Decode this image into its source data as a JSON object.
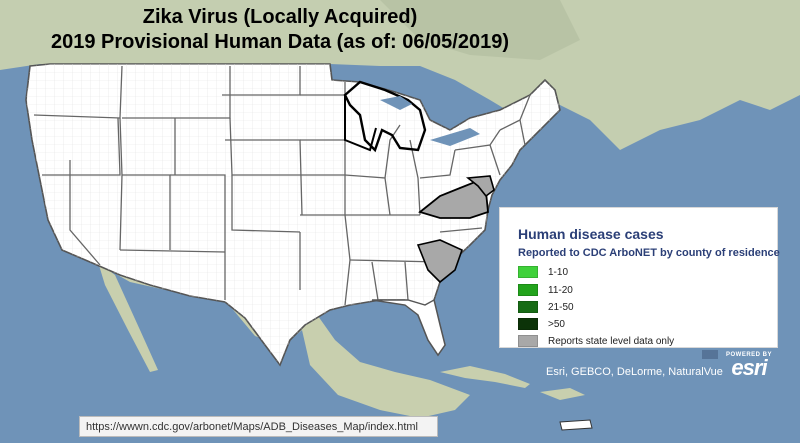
{
  "title": {
    "line1": "Zika Virus (Locally Acquired)",
    "line2": "2019 Provisional Human Data (as of: 06/05/2019)"
  },
  "legend": {
    "title": "Human disease cases",
    "subtitle": "Reported to CDC ArboNET by county of residence",
    "items": [
      {
        "label": "1-10",
        "color": "#3fd13a"
      },
      {
        "label": "11-20",
        "color": "#22a31c"
      },
      {
        "label": "21-50",
        "color": "#176b15"
      },
      {
        "label": ">50",
        "color": "#0c3308"
      },
      {
        "label": "Reports state level data only",
        "color": "#a8a8a8"
      }
    ]
  },
  "map": {
    "ocean_color": "#6f93b8",
    "land_color": "#c9d2b2",
    "us_fill": "#ffffff",
    "state_level_color": "#a8a8a8",
    "states_reporting_state_level_only": [
      "Virginia",
      "Maryland",
      "Delaware",
      "South Carolina"
    ],
    "highlighted_outline": "Michigan"
  },
  "attribution": "Esri, GEBCO, DeLorme, NaturalVue",
  "logo": {
    "small": "POWERED BY",
    "word": "esri"
  },
  "url": "https://wwwn.cdc.gov/arbonet/Maps/ADB_Diseases_Map/index.html"
}
